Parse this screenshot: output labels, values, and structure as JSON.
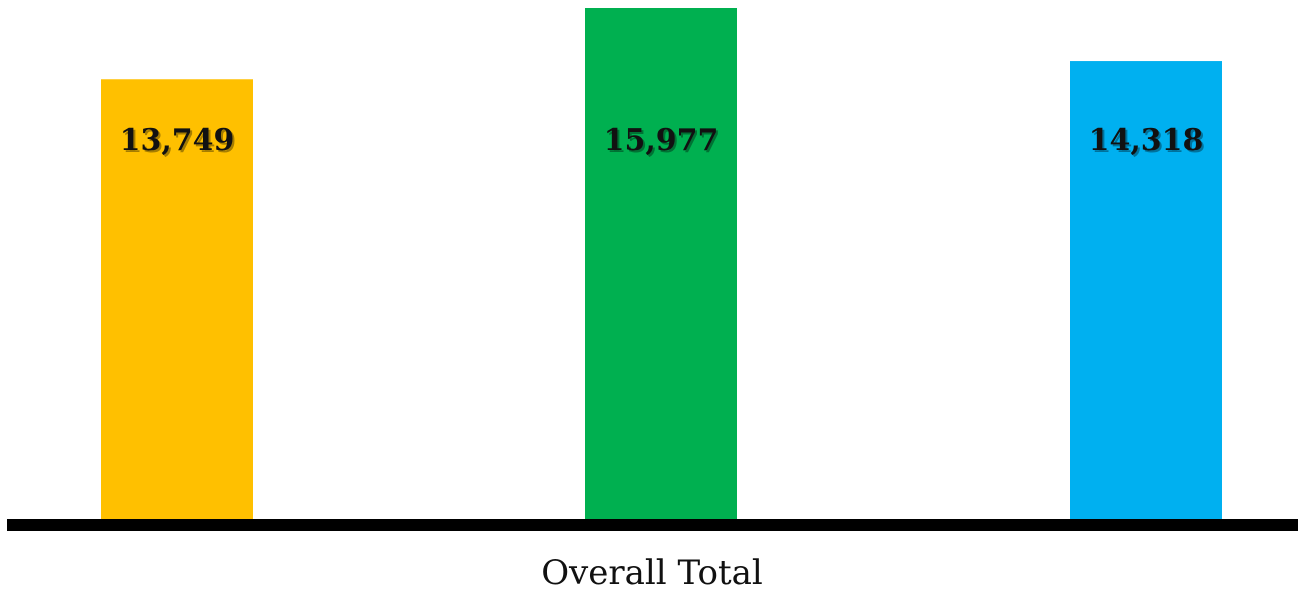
{
  "chart_data": {
    "type": "bar",
    "categories": [
      "Overall Total"
    ],
    "series": [
      {
        "values": [
          13749
        ],
        "color": "#FFC000"
      },
      {
        "values": [
          15977
        ],
        "color": "#00B050"
      },
      {
        "values": [
          14318
        ],
        "color": "#00B0F0"
      }
    ],
    "data_labels": [
      "13,749",
      "15,977",
      "14,318"
    ],
    "xlabel": "Overall Total",
    "title": "",
    "ylabel": "",
    "ylim": [
      0,
      15977
    ],
    "grid": false,
    "legend": "none",
    "axis_color": "#000000"
  }
}
